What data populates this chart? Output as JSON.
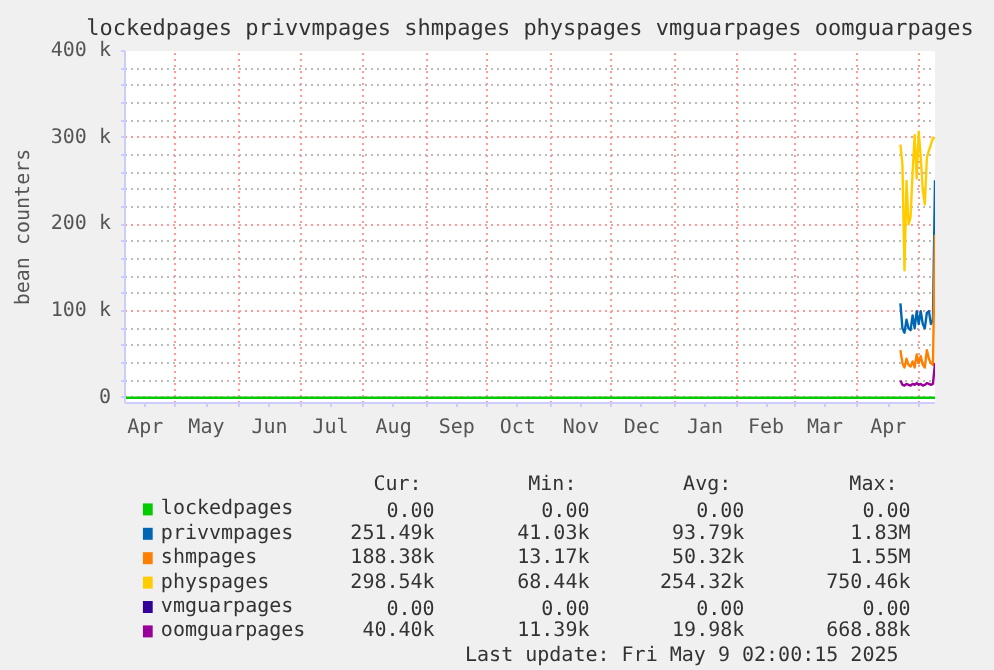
{
  "chart_data": {
    "type": "line",
    "title": "lockedpages privvmpages shmpages physpages vmguarpages oomguarpages",
    "ylabel": "bean counters",
    "xlim": [
      "2024-04-06",
      "2025-05-09"
    ],
    "xticks": [
      {
        "value": "2024-04-16",
        "label": "Apr"
      },
      {
        "value": "2024-05-01",
        "label": null
      },
      {
        "value": "2024-05-16",
        "label": "May"
      },
      {
        "value": "2024-06-01",
        "label": null
      },
      {
        "value": "2024-06-16",
        "label": "Jun"
      },
      {
        "value": "2024-07-01",
        "label": null
      },
      {
        "value": "2024-07-16",
        "label": "Jul"
      },
      {
        "value": "2024-08-01",
        "label": null
      },
      {
        "value": "2024-08-16",
        "label": "Aug"
      },
      {
        "value": "2024-09-01",
        "label": null
      },
      {
        "value": "2024-09-16",
        "label": "Sep"
      },
      {
        "value": "2024-10-01",
        "label": null
      },
      {
        "value": "2024-10-16",
        "label": "Oct"
      },
      {
        "value": "2024-11-01",
        "label": null
      },
      {
        "value": "2024-11-16",
        "label": "Nov"
      },
      {
        "value": "2024-12-01",
        "label": null
      },
      {
        "value": "2024-12-16",
        "label": "Dec"
      },
      {
        "value": "2025-01-01",
        "label": null
      },
      {
        "value": "2025-01-16",
        "label": "Jan"
      },
      {
        "value": "2025-02-01",
        "label": null
      },
      {
        "value": "2025-02-15",
        "label": "Feb"
      },
      {
        "value": "2025-03-01",
        "label": null
      },
      {
        "value": "2025-03-16",
        "label": "Mar"
      },
      {
        "value": "2025-04-01",
        "label": null
      },
      {
        "value": "2025-04-16",
        "label": "Apr"
      },
      {
        "value": "2025-05-01",
        "label": null
      }
    ],
    "ylim": [
      -6000,
      400000
    ],
    "yticks": [
      {
        "value": 0,
        "label": "0"
      },
      {
        "value": 20000,
        "label": null
      },
      {
        "value": 40000,
        "label": null
      },
      {
        "value": 60000,
        "label": null
      },
      {
        "value": 80000,
        "label": null
      },
      {
        "value": 100000,
        "label": "100 k"
      },
      {
        "value": 120000,
        "label": null
      },
      {
        "value": 140000,
        "label": null
      },
      {
        "value": 160000,
        "label": null
      },
      {
        "value": 180000,
        "label": null
      },
      {
        "value": 200000,
        "label": "200 k"
      },
      {
        "value": 220000,
        "label": null
      },
      {
        "value": 240000,
        "label": null
      },
      {
        "value": 260000,
        "label": null
      },
      {
        "value": 280000,
        "label": null
      },
      {
        "value": 300000,
        "label": "300 k"
      },
      {
        "value": 320000,
        "label": null
      },
      {
        "value": 340000,
        "label": null
      },
      {
        "value": 360000,
        "label": null
      },
      {
        "value": 380000,
        "label": null
      },
      {
        "value": 400000,
        "label": "400 k"
      }
    ],
    "grid": true,
    "legend": "bottom",
    "series": [
      {
        "name": "lockedpages",
        "color": "#00cc00",
        "x": [
          "2024-04-06",
          "2025-05-09"
        ],
        "values": [
          0,
          0
        ]
      },
      {
        "name": "privvmpages",
        "color": "#0066b3",
        "x": [
          "2025-04-22",
          "2025-04-23",
          "2025-04-24",
          "2025-04-25",
          "2025-04-26",
          "2025-04-27",
          "2025-04-28",
          "2025-04-29",
          "2025-04-30",
          "2025-05-01",
          "2025-05-02",
          "2025-05-03",
          "2025-05-04",
          "2025-05-05",
          "2025-05-06",
          "2025-05-07",
          "2025-05-08",
          "2025-05-09"
        ],
        "values": [
          109000,
          80000,
          75000,
          90000,
          80000,
          78000,
          95000,
          80000,
          100000,
          85000,
          100000,
          85000,
          80000,
          98000,
          100000,
          85000,
          90000,
          251000
        ]
      },
      {
        "name": "shmpages",
        "color": "#ff8000",
        "x": [
          "2025-04-22",
          "2025-04-23",
          "2025-04-24",
          "2025-04-25",
          "2025-04-26",
          "2025-04-27",
          "2025-04-28",
          "2025-04-29",
          "2025-04-30",
          "2025-05-01",
          "2025-05-02",
          "2025-05-03",
          "2025-05-04",
          "2025-05-05",
          "2025-05-06",
          "2025-05-07",
          "2025-05-08",
          "2025-05-09"
        ],
        "values": [
          55000,
          40000,
          35000,
          45000,
          38000,
          36000,
          42000,
          35000,
          50000,
          40000,
          48000,
          38000,
          35000,
          55000,
          45000,
          40000,
          38000,
          188000
        ]
      },
      {
        "name": "physpages",
        "color": "#ffcc00",
        "x": [
          "2025-04-22",
          "2025-04-23",
          "2025-04-24",
          "2025-04-25",
          "2025-04-26",
          "2025-04-27",
          "2025-04-28",
          "2025-04-29",
          "2025-04-30",
          "2025-05-01",
          "2025-05-02",
          "2025-05-03",
          "2025-05-04",
          "2025-05-05",
          "2025-05-06",
          "2025-05-07",
          "2025-05-08",
          "2025-05-09"
        ],
        "values": [
          292000,
          269000,
          147000,
          250000,
          200000,
          208000,
          260000,
          303000,
          253000,
          307000,
          277000,
          240000,
          223000,
          277000,
          285000,
          292000,
          300000,
          299000
        ]
      },
      {
        "name": "vmguarpages",
        "color": "#330099"
      },
      {
        "name": "oomguarpages",
        "color": "#990099",
        "x": [
          "2025-04-22",
          "2025-04-23",
          "2025-04-24",
          "2025-04-25",
          "2025-04-26",
          "2025-04-27",
          "2025-04-28",
          "2025-04-29",
          "2025-04-30",
          "2025-05-01",
          "2025-05-02",
          "2025-05-03",
          "2025-05-04",
          "2025-05-05",
          "2025-05-06",
          "2025-05-07",
          "2025-05-08",
          "2025-05-09"
        ],
        "values": [
          20000,
          15000,
          14000,
          16000,
          15000,
          14000,
          16000,
          15000,
          17000,
          15000,
          16000,
          14000,
          15000,
          17000,
          16000,
          15000,
          16000,
          40000
        ]
      }
    ],
    "annotations": [
      "Cur:",
      "Min:",
      "Avg:",
      "Max:",
      "0.00",
      "0.00",
      "0.00",
      "0.00",
      "251.49k",
      "41.03k",
      "93.79k",
      "1.83M",
      "188.38k",
      "13.17k",
      "50.32k",
      "1.55M",
      "298.54k",
      "68.44k",
      "254.32k",
      "750.46k",
      "0.00",
      "0.00",
      "0.00",
      "0.00",
      "40.40k",
      "11.39k",
      "19.98k",
      "668.88k",
      "Last update: Fri May  9 02:00:15 2025"
    ]
  }
}
